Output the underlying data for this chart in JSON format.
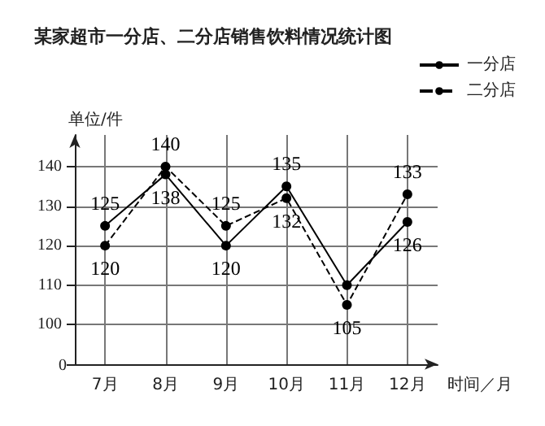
{
  "chart_data": {
    "type": "line",
    "title": "某家超市一分店、二分店销售饮料情况统计图",
    "xlabel": "时间／月",
    "ylabel": "单位/件",
    "categories": [
      "7月",
      "8月",
      "9月",
      "10月",
      "11月",
      "12月"
    ],
    "series": [
      {
        "name": "一分店",
        "color": "#000000",
        "line_style": "solid",
        "values": [
          125,
          138,
          120,
          135,
          110,
          126
        ],
        "value_labels": [
          "125",
          "138",
          "120",
          "135",
          null,
          "126"
        ]
      },
      {
        "name": "二分店",
        "color": "#000000",
        "line_style": "dashed",
        "values": [
          120,
          140,
          125,
          132,
          105,
          133
        ],
        "value_labels": [
          "120",
          "140",
          "125",
          "132",
          "105",
          "133"
        ]
      }
    ],
    "ylim": [
      90,
      148
    ],
    "yticks": [
      {
        "value": 90,
        "label": null
      },
      100,
      110,
      120,
      130,
      140
    ],
    "annotations": [
      "0"
    ],
    "grid": true,
    "legend": "top right",
    "marker": "circle"
  }
}
